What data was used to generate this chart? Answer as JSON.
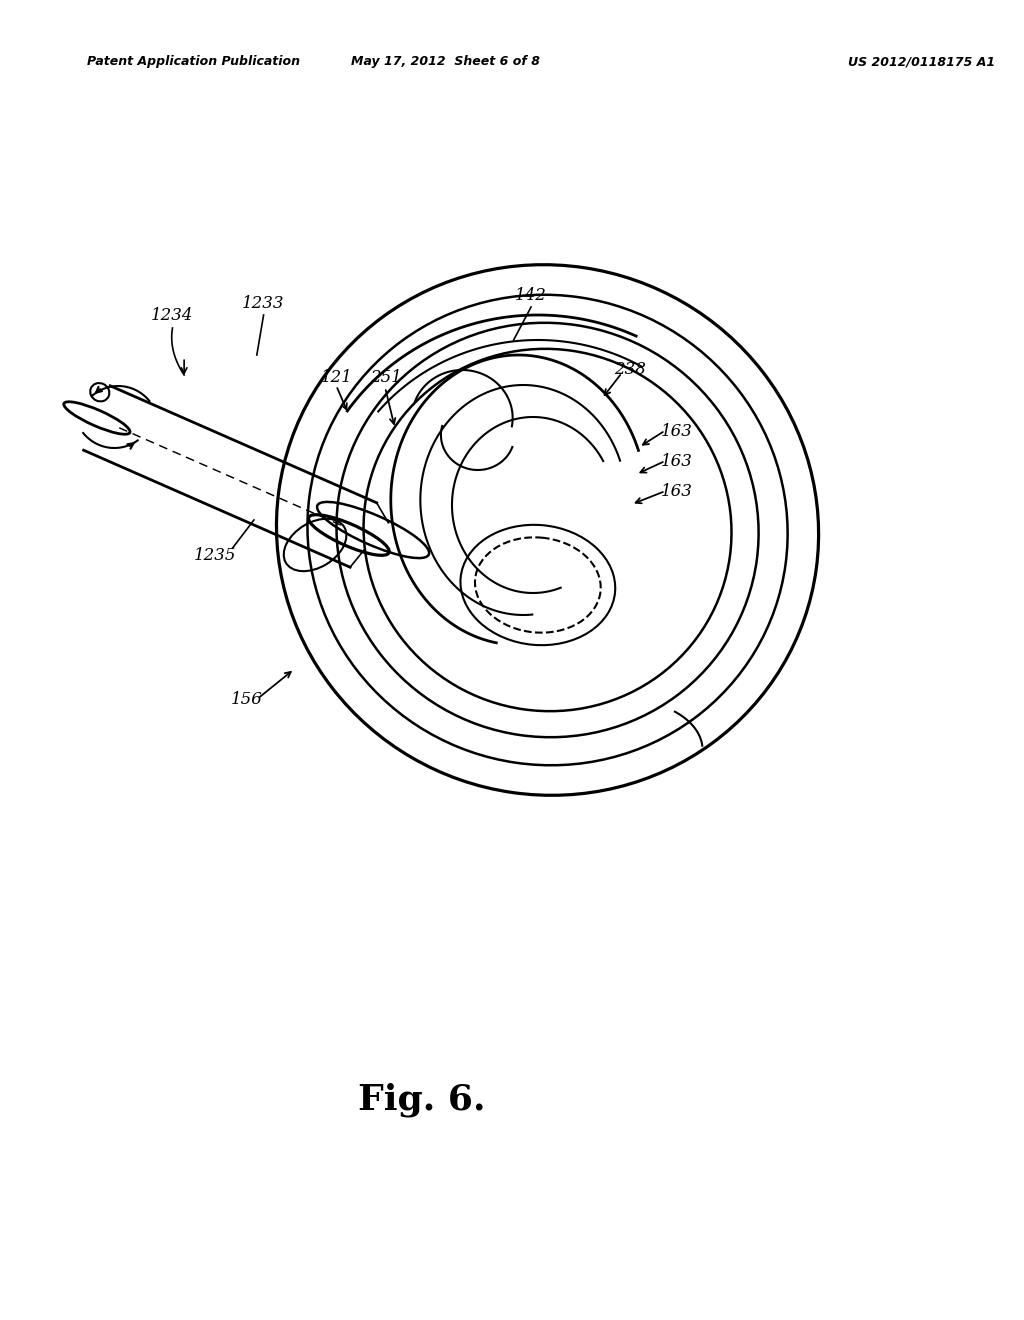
{
  "background_color": "#ffffff",
  "header_left": "Patent Application Publication",
  "header_center": "May 17, 2012  Sheet 6 of 8",
  "header_right": "US 2012/0118175 A1",
  "fig_label": "Fig. 6.",
  "lw": 1.5
}
